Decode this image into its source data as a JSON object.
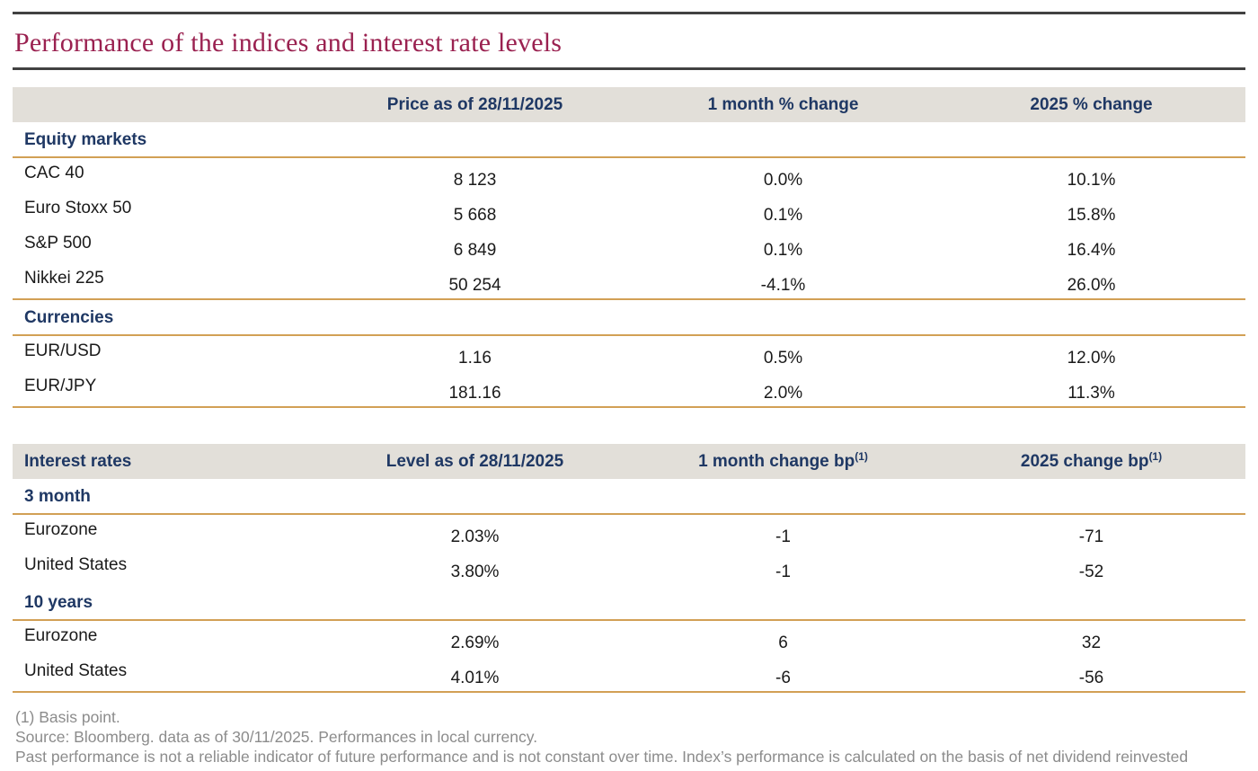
{
  "title": "Performance of the indices and interest rate levels",
  "markets_table": {
    "column_headers": [
      "Price as of 28/11/2025",
      "1 month % change",
      "2025 % change"
    ],
    "sections": [
      {
        "name": "Equity markets",
        "rows": [
          {
            "label": "CAC 40",
            "price": "8 123",
            "change_1m": "0.0%",
            "change_2025": "10.1%"
          },
          {
            "label": "Euro Stoxx 50",
            "price": "5 668",
            "change_1m": "0.1%",
            "change_2025": "15.8%"
          },
          {
            "label": "S&P 500",
            "price": "6 849",
            "change_1m": "0.1%",
            "change_2025": "16.4%"
          },
          {
            "label": "Nikkei 225",
            "price": "50 254",
            "change_1m": "-4.1%",
            "change_2025": "26.0%"
          }
        ]
      },
      {
        "name": "Currencies",
        "rows": [
          {
            "label": "EUR/USD",
            "price": "1.16",
            "change_1m": "0.5%",
            "change_2025": "12.0%"
          },
          {
            "label": "EUR/JPY",
            "price": "181.16",
            "change_1m": "2.0%",
            "change_2025": "11.3%"
          }
        ]
      }
    ]
  },
  "rates_table": {
    "corner_header": "Interest rates",
    "column_headers": [
      "Level as of 28/11/2025",
      "1 month change bp",
      "2025 change bp"
    ],
    "footnote_marker": "(1)",
    "sections": [
      {
        "name": "3 month",
        "rows": [
          {
            "label": "Eurozone",
            "level": "2.03%",
            "change_1m": "-1",
            "change_2025": "-71"
          },
          {
            "label": "United States",
            "level": "3.80%",
            "change_1m": "-1",
            "change_2025": "-52"
          }
        ]
      },
      {
        "name": "10 years",
        "rows": [
          {
            "label": "Eurozone",
            "level": "2.69%",
            "change_1m": "6",
            "change_2025": "32"
          },
          {
            "label": "United States",
            "level": "4.01%",
            "change_1m": "-6",
            "change_2025": "-56"
          }
        ]
      }
    ]
  },
  "footnotes": [
    "(1) Basis point.",
    "Source: Bloomberg. data as of 30/11/2025. Performances in local currency.",
    "Past performance is not a reliable indicator of future performance and is not constant over time. Index’s performance is calculated on the basis of net dividend reinvested"
  ],
  "colors": {
    "title_crimson": "#9A2150",
    "heading_navy": "#1F3864",
    "gold_rule": "#D2A055",
    "header_band_beige": "#E2DFD9",
    "dark_rule": "#414141",
    "footnote_gray": "#8C8C8C"
  }
}
